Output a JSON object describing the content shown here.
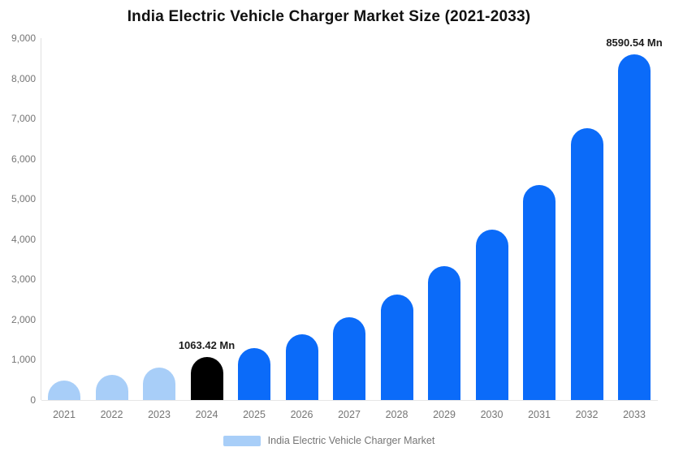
{
  "chart_data": {
    "type": "bar",
    "title": "India Electric Vehicle Charger Market Size (2021-2033)",
    "categories": [
      "2021",
      "2022",
      "2023",
      "2024",
      "2025",
      "2026",
      "2027",
      "2028",
      "2029",
      "2030",
      "2031",
      "2032",
      "2033"
    ],
    "values": [
      480,
      630,
      800,
      1063.42,
      1300,
      1630,
      2050,
      2620,
      3330,
      4230,
      5340,
      6760,
      8590.54
    ],
    "series_name": "India Electric Vehicle Charger Market",
    "value_unit": "Mn",
    "xlabel": "",
    "ylabel": "",
    "ylim": [
      0,
      9000
    ],
    "y_ticks": [
      "9,000",
      "8,000",
      "7,000",
      "6,000",
      "5,000",
      "4,000",
      "3,000",
      "2,000",
      "1,000",
      "0"
    ],
    "grid": false,
    "legend_position": "bottom",
    "bar_colors": [
      "#a8cef8",
      "#a8cef8",
      "#a8cef8",
      "#000000",
      "#0b6bf9",
      "#0b6bf9",
      "#0b6bf9",
      "#0b6bf9",
      "#0b6bf9",
      "#0b6bf9",
      "#0b6bf9",
      "#0b6bf9",
      "#0b6bf9"
    ],
    "point_labels": [
      {
        "index": 3,
        "text": "1063.42 Mn"
      },
      {
        "index": 12,
        "text": "8590.54 Mn"
      }
    ],
    "colors": {
      "historical_bar": "#a8cef8",
      "base_year_bar": "#000000",
      "forecast_bar": "#0b6bf9",
      "axis_text": "#757575",
      "axis_line": "#e0e0e0",
      "data_label_text": "#1c1c1c",
      "title_text": "#111111"
    }
  },
  "legend": {
    "label": "India Electric Vehicle Charger Market",
    "swatch_color": "#a8cef8"
  }
}
